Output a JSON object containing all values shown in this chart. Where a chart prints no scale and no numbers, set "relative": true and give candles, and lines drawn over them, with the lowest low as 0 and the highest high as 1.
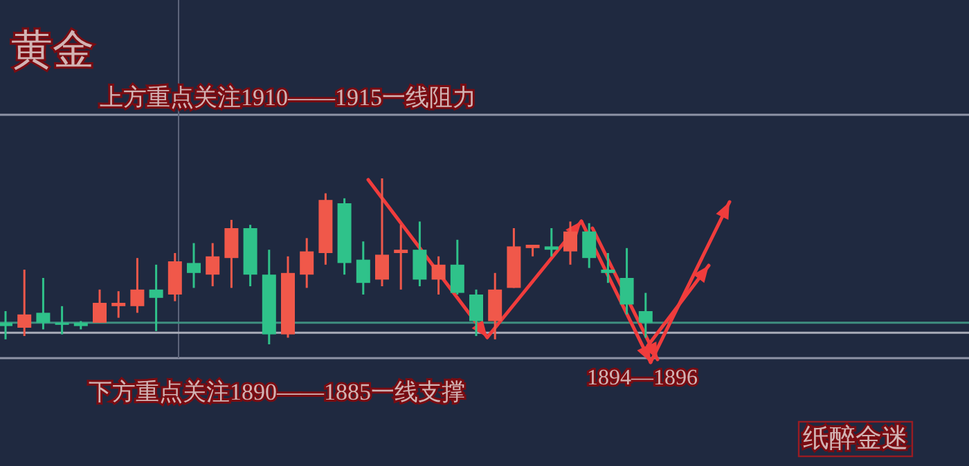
{
  "chart_data": {
    "type": "candlestick",
    "title": "黄金",
    "relative": true,
    "annotations": [
      "上方重点关注1910——1915一线阻力",
      "下方重点关注1890——1885一线支撑",
      "1894—1896",
      "纸醉金迷"
    ],
    "categories": [
      null,
      null,
      null,
      null,
      null,
      null,
      null,
      null,
      null,
      null,
      null,
      null,
      null,
      null,
      null,
      null,
      null,
      null,
      null,
      null,
      null,
      null,
      null,
      null,
      null,
      null,
      null,
      null,
      null,
      null,
      null,
      null,
      null,
      null,
      null
    ],
    "ohlc": [
      [
        0.13,
        0.2,
        0.03,
        0.11
      ],
      [
        0.1,
        0.45,
        0.05,
        0.18
      ],
      [
        0.19,
        0.4,
        0.09,
        0.13
      ],
      [
        0.13,
        0.23,
        0.06,
        0.12
      ],
      [
        0.13,
        0.14,
        0.09,
        0.11
      ],
      [
        0.13,
        0.33,
        0.13,
        0.25
      ],
      [
        0.23,
        0.32,
        0.16,
        0.25
      ],
      [
        0.23,
        0.52,
        0.19,
        0.33
      ],
      [
        0.33,
        0.48,
        0.08,
        0.28
      ],
      [
        0.3,
        0.55,
        0.26,
        0.5
      ],
      [
        0.49,
        0.61,
        0.34,
        0.43
      ],
      [
        0.42,
        0.61,
        0.35,
        0.53
      ],
      [
        0.52,
        0.75,
        0.34,
        0.7
      ],
      [
        0.7,
        0.72,
        0.35,
        0.42
      ],
      [
        0.42,
        0.57,
        0,
        0.06
      ],
      [
        0.06,
        0.53,
        0.04,
        0.43
      ],
      [
        0.42,
        0.64,
        0.34,
        0.56
      ],
      [
        0.55,
        0.91,
        0.48,
        0.87
      ],
      [
        0.85,
        0.88,
        0.42,
        0.49
      ],
      [
        0.51,
        0.62,
        0.3,
        0.37
      ],
      [
        0.39,
        1,
        0.35,
        0.54
      ],
      [
        0.55,
        0.72,
        0.33,
        0.57
      ],
      [
        0.57,
        0.74,
        0.35,
        0.39
      ],
      [
        0.39,
        0.53,
        0.3,
        0.48
      ],
      [
        0.48,
        0.63,
        0.3,
        0.31
      ],
      [
        0.3,
        0.33,
        0.05,
        0.14
      ],
      [
        0.14,
        0.43,
        0.03,
        0.33
      ],
      [
        0.34,
        0.7,
        0.34,
        0.59
      ],
      [
        0.58,
        0.6,
        0.53,
        0.6
      ],
      [
        0.59,
        0.7,
        0.53,
        0.57
      ],
      [
        0.56,
        0.74,
        0.48,
        0.68
      ],
      [
        0.68,
        0.73,
        0.46,
        0.52
      ],
      [
        0.45,
        0.55,
        0.37,
        0.43
      ],
      [
        0.4,
        0.58,
        0.18,
        0.24
      ],
      [
        0.2,
        0.31,
        0.04,
        0.13
      ]
    ],
    "colors": [
      "#2fc28a",
      "#f0584a",
      "#2fc28a",
      "#2fc28a",
      "#2fc28a",
      "#f0584a",
      "#f0584a",
      "#f0584a",
      "#2fc28a",
      "#f0584a",
      "#2fc28a",
      "#f0584a",
      "#f0584a",
      "#2fc28a",
      "#2fc28a",
      "#f0584a",
      "#f0584a",
      "#f0584a",
      "#2fc28a",
      "#2fc28a",
      "#f0584a",
      "#f0584a",
      "#2fc28a",
      "#f0584a",
      "#2fc28a",
      "#2fc28a",
      "#f0584a",
      "#f0584a",
      "#f0584a",
      "#2fc28a",
      "#f0584a",
      "#2fc28a",
      "#2fc28a",
      "#2fc28a",
      "#2fc28a"
    ],
    "ref_lines": [
      {
        "axis": "y",
        "value": 0.13,
        "color": "#3f8f80"
      },
      {
        "axis": "y",
        "value": 0.07,
        "color": "#a8abb8"
      }
    ]
  }
}
